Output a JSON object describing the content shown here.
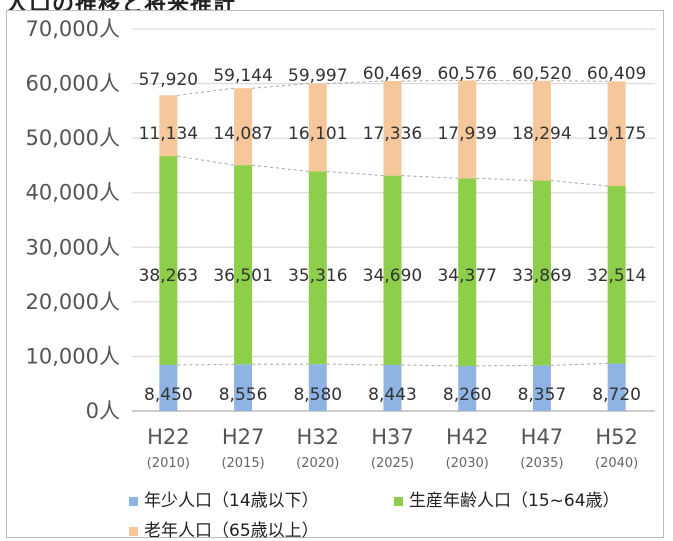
{
  "header": {
    "title_fragment": "人口の推移と将来推計"
  },
  "chart_data": {
    "type": "bar",
    "stacked": true,
    "categories": [
      "H22",
      "H27",
      "H32",
      "H37",
      "H42",
      "H47",
      "H52"
    ],
    "sub_categories": [
      "(2010)",
      "(2015)",
      "(2020)",
      "(2025)",
      "(2030)",
      "(2035)",
      "(2040)"
    ],
    "series": [
      {
        "name": "年少人口（14歳以下）",
        "color": "#8fb4e3",
        "values": [
          8450,
          8556,
          8580,
          8443,
          8260,
          8357,
          8720
        ],
        "labels": [
          "8,450",
          "8,556",
          "8,580",
          "8,443",
          "8,260",
          "8,357",
          "8,720"
        ]
      },
      {
        "name": "生産年齢人口（15~64歳）",
        "color": "#8dcf4a",
        "values": [
          38263,
          36501,
          35316,
          34690,
          34377,
          33869,
          32514
        ],
        "labels": [
          "38,263",
          "36,501",
          "35,316",
          "34,690",
          "34,377",
          "33,869",
          "32,514"
        ]
      },
      {
        "name": "老年人口（65歳以上）",
        "color": "#f6c79b",
        "values": [
          11134,
          14087,
          16101,
          17336,
          17939,
          18294,
          19175
        ],
        "labels": [
          "11,134",
          "14,087",
          "16,101",
          "17,336",
          "17,939",
          "18,294",
          "19,175"
        ]
      }
    ],
    "totals": [
      57920,
      59144,
      59997,
      60469,
      60576,
      60520,
      60409
    ],
    "total_labels": [
      "57,920",
      "59,144",
      "59,997",
      "60,469",
      "60,576",
      "60,520",
      "60,409"
    ],
    "y_ticks": [
      0,
      10000,
      20000,
      30000,
      40000,
      50000,
      60000,
      70000
    ],
    "y_tick_labels": [
      "0人",
      "10,000人",
      "20,000人",
      "30,000人",
      "40,000人",
      "50,000人",
      "60,000人",
      "70,000人"
    ],
    "ylim": [
      0,
      70000
    ],
    "grid": true,
    "legend_position": "bottom",
    "connector_lines": "dashed"
  }
}
